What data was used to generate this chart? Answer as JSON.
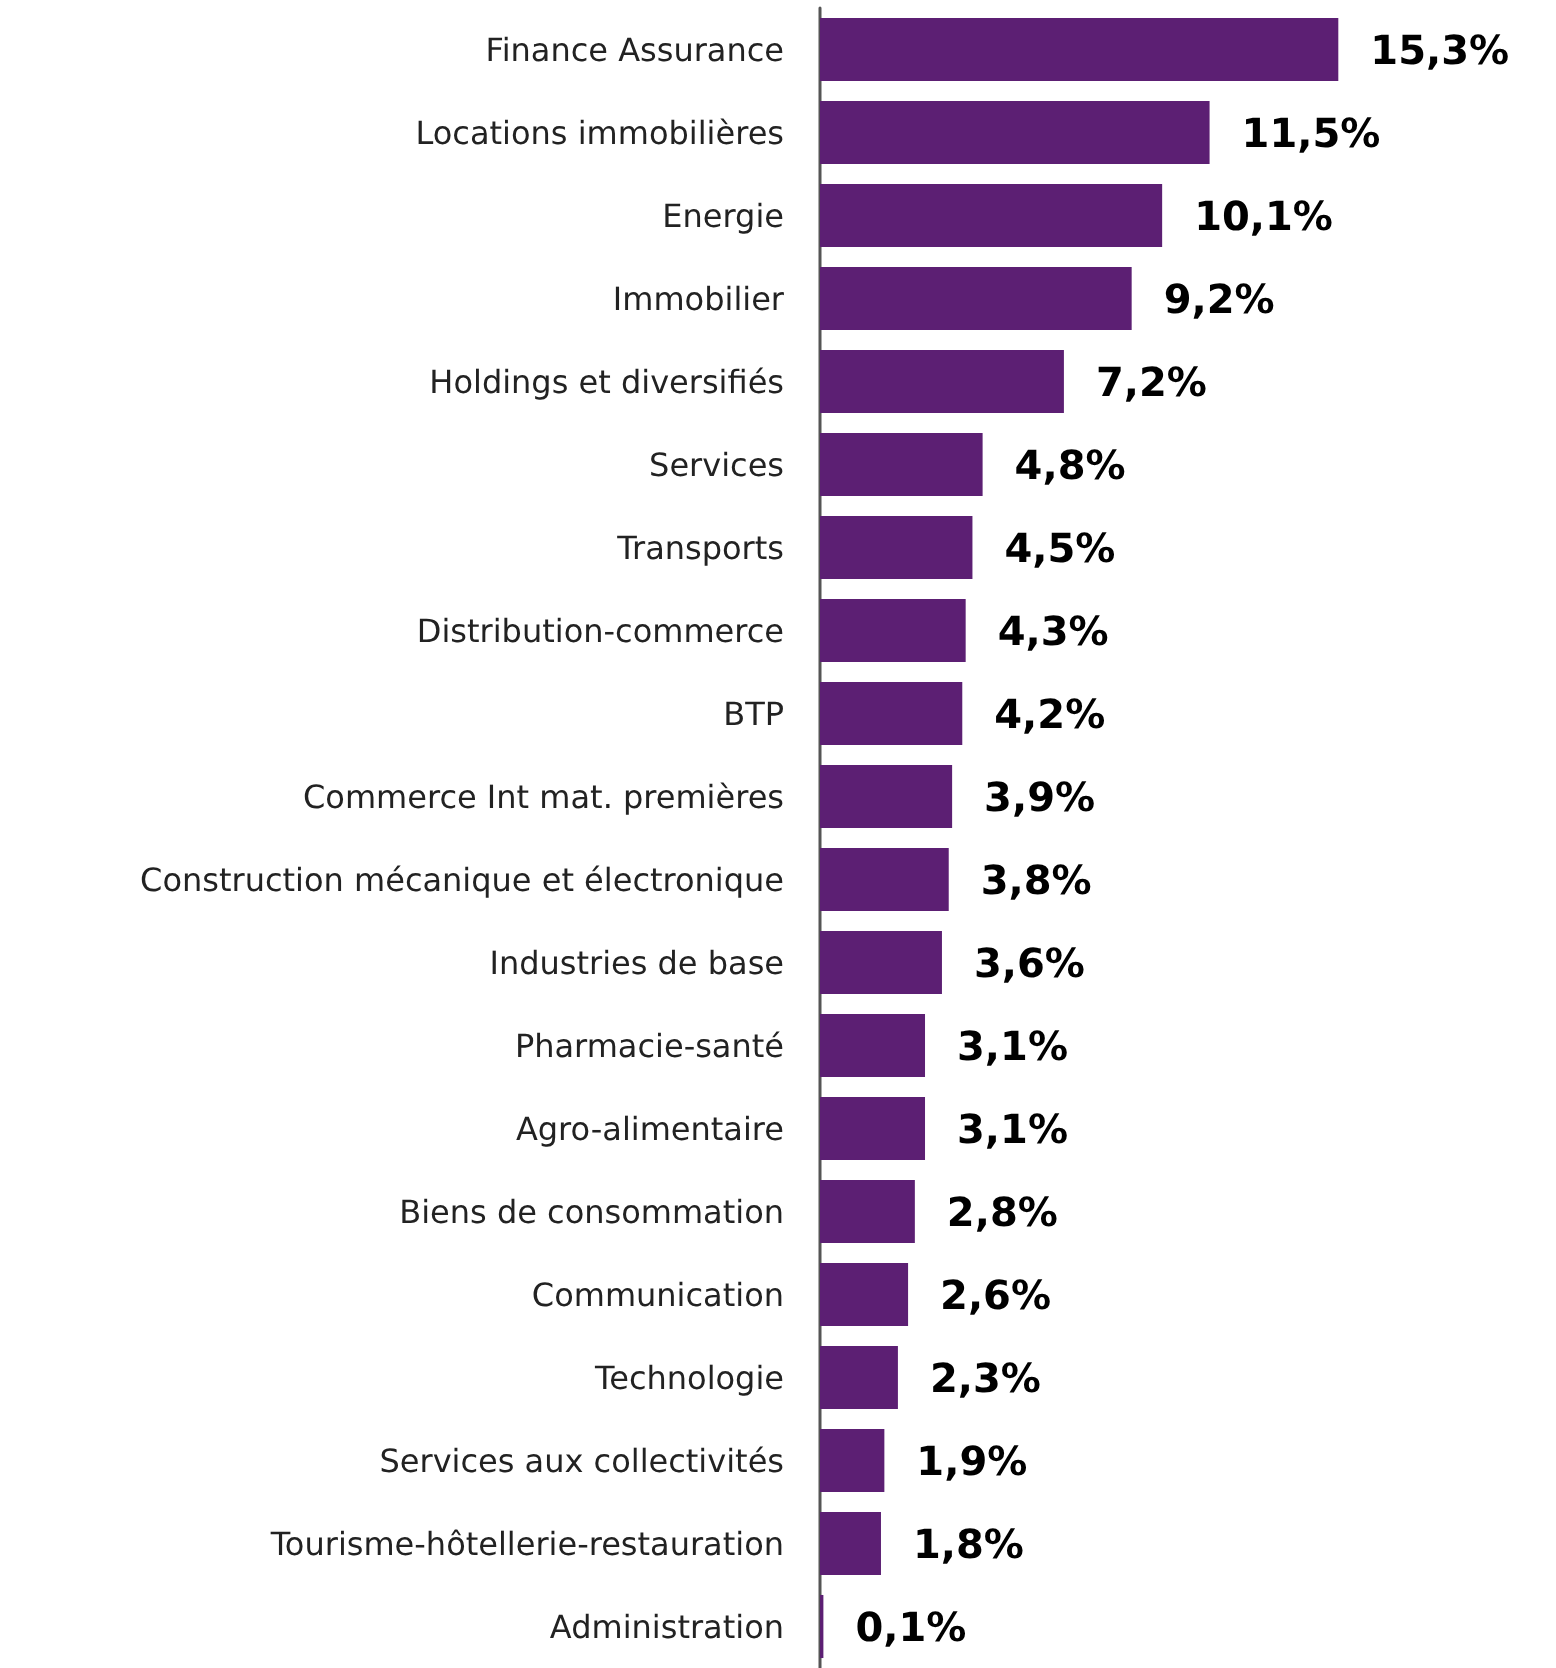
{
  "chart_data": {
    "type": "bar",
    "orientation": "horizontal",
    "color": "#5c1f73",
    "categories": [
      "Finance Assurance",
      "Locations immobilières",
      "Energie",
      "Immobilier",
      "Holdings et diversifiés",
      "Services",
      "Transports",
      "Distribution-commerce",
      "BTP",
      "Commerce Int mat. premières",
      "Construction mécanique et électronique",
      "Industries de base",
      "Pharmacie-santé",
      "Agro-alimentaire",
      "Biens de consommation",
      "Communication",
      "Technologie",
      "Services aux collectivités",
      "Tourisme-hôtellerie-restauration",
      "Administration"
    ],
    "values": [
      15.3,
      11.5,
      10.1,
      9.2,
      7.2,
      4.8,
      4.5,
      4.3,
      4.2,
      3.9,
      3.8,
      3.6,
      3.1,
      3.1,
      2.8,
      2.6,
      2.3,
      1.9,
      1.8,
      0.1
    ],
    "value_labels": [
      "15,3%",
      "11,5%",
      "10,1%",
      "9,2%",
      "7,2%",
      "4,8%",
      "4,5%",
      "4,3%",
      "4,2%",
      "3,9%",
      "3,8%",
      "3,6%",
      "3,1%",
      "3,1%",
      "2,8%",
      "2,6%",
      "2,3%",
      "1,9%",
      "1,8%",
      "0,1%"
    ]
  }
}
